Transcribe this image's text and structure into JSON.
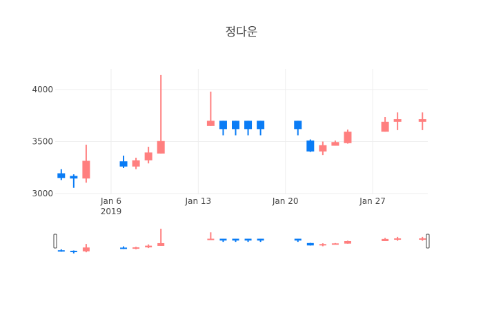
{
  "chart_data": {
    "type": "candlestick",
    "title": "정다운",
    "xlabel": "",
    "ylabel": "",
    "ylim": [
      2990,
      4200
    ],
    "y_ticks": [
      3000,
      3500,
      4000
    ],
    "x_ticks": [
      {
        "label": "Jan 6",
        "sub": "2019",
        "day": 6
      },
      {
        "label": "Jan 13",
        "day": 13
      },
      {
        "label": "Jan 20",
        "day": 20
      },
      {
        "label": "Jan 27",
        "day": 27
      }
    ],
    "grid": true,
    "rangeslider": true,
    "increasing_color": "#FF7F7F",
    "decreasing_color": "#0A7CF5",
    "series": [
      {
        "date": "2019-01-02",
        "day": 2,
        "open": 3195,
        "high": 3235,
        "low": 3130,
        "close": 3150
      },
      {
        "date": "2019-01-03",
        "day": 3,
        "open": 3170,
        "high": 3185,
        "low": 3055,
        "close": 3145
      },
      {
        "date": "2019-01-04",
        "day": 4,
        "open": 3145,
        "high": 3470,
        "low": 3105,
        "close": 3315
      },
      {
        "date": "2019-01-07",
        "day": 7,
        "open": 3310,
        "high": 3365,
        "low": 3245,
        "close": 3260
      },
      {
        "date": "2019-01-08",
        "day": 8,
        "open": 3260,
        "high": 3345,
        "low": 3235,
        "close": 3320
      },
      {
        "date": "2019-01-09",
        "day": 9,
        "open": 3320,
        "high": 3450,
        "low": 3290,
        "close": 3395
      },
      {
        "date": "2019-01-10",
        "day": 10,
        "open": 3385,
        "high": 4140,
        "low": 3385,
        "close": 3505
      },
      {
        "date": "2019-01-14",
        "day": 14,
        "open": 3650,
        "high": 3980,
        "low": 3650,
        "close": 3700
      },
      {
        "date": "2019-01-15",
        "day": 15,
        "open": 3700,
        "high": 3700,
        "low": 3560,
        "close": 3620
      },
      {
        "date": "2019-01-16",
        "day": 16,
        "open": 3700,
        "high": 3700,
        "low": 3560,
        "close": 3620
      },
      {
        "date": "2019-01-17",
        "day": 17,
        "open": 3700,
        "high": 3700,
        "low": 3560,
        "close": 3620
      },
      {
        "date": "2019-01-18",
        "day": 18,
        "open": 3700,
        "high": 3700,
        "low": 3560,
        "close": 3620
      },
      {
        "date": "2019-01-21",
        "day": 21,
        "open": 3700,
        "high": 3700,
        "low": 3560,
        "close": 3620
      },
      {
        "date": "2019-01-22",
        "day": 22,
        "open": 3510,
        "high": 3520,
        "low": 3400,
        "close": 3405
      },
      {
        "date": "2019-01-23",
        "day": 23,
        "open": 3405,
        "high": 3500,
        "low": 3370,
        "close": 3465
      },
      {
        "date": "2019-01-24",
        "day": 24,
        "open": 3460,
        "high": 3510,
        "low": 3460,
        "close": 3495
      },
      {
        "date": "2019-01-25",
        "day": 25,
        "open": 3485,
        "high": 3615,
        "low": 3480,
        "close": 3595
      },
      {
        "date": "2019-01-28",
        "day": 28,
        "open": 3595,
        "high": 3735,
        "low": 3595,
        "close": 3690
      },
      {
        "date": "2019-01-29",
        "day": 29,
        "open": 3690,
        "high": 3780,
        "low": 3610,
        "close": 3715
      },
      {
        "date": "2019-01-31",
        "day": 31,
        "open": 3690,
        "high": 3780,
        "low": 3610,
        "close": 3715
      }
    ]
  }
}
